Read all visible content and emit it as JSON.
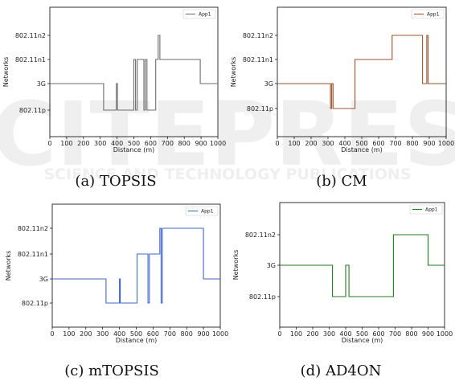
{
  "chart_data": [
    {
      "type": "line",
      "caption": "(a) TOPSIS",
      "xlabel": "Distance (m)",
      "ylabel": "Networks",
      "xlim": [
        0,
        1000
      ],
      "x_ticks": [
        "0",
        "100",
        "200",
        "300",
        "400",
        "500",
        "600",
        "700",
        "800",
        "900",
        "1000"
      ],
      "y_categories": [
        "802.11p",
        "3G",
        "802.11n1",
        "802.11n2"
      ],
      "legend_position": "top-right",
      "series": [
        {
          "name": "App1",
          "color": "#6e6e6e",
          "x": [
            0,
            320,
            320,
            395,
            395,
            403,
            403,
            500,
            500,
            510,
            510,
            520,
            520,
            560,
            560,
            568,
            568,
            578,
            578,
            630,
            630,
            645,
            645,
            655,
            655,
            895,
            895,
            1000
          ],
          "y": [
            1,
            1,
            0,
            0,
            1,
            1,
            0,
            0,
            2,
            2,
            0,
            0,
            2,
            2,
            0,
            0,
            2,
            2,
            0,
            0,
            2,
            2,
            3,
            3,
            2,
            2,
            1,
            1
          ]
        }
      ]
    },
    {
      "type": "line",
      "caption": "(b) CM",
      "xlabel": "Distance (m)",
      "ylabel": "Networks",
      "xlim": [
        0,
        1000
      ],
      "x_ticks": [
        "0",
        "100",
        "200",
        "300",
        "400",
        "500",
        "600",
        "700",
        "800",
        "900",
        "1000"
      ],
      "y_categories": [
        "802.11p",
        "3G",
        "802.11n1",
        "802.11n2"
      ],
      "legend_position": "top-right",
      "series": [
        {
          "name": "App1",
          "color": "#a0522d",
          "x": [
            0,
            315,
            315,
            322,
            322,
            330,
            330,
            460,
            460,
            680,
            680,
            860,
            860,
            885,
            885,
            893,
            893,
            900,
            900,
            1000
          ],
          "y": [
            1,
            1,
            0,
            0,
            1,
            1,
            0,
            0,
            2,
            2,
            3,
            3,
            1,
            1,
            3,
            3,
            1,
            1,
            1,
            1
          ]
        }
      ]
    },
    {
      "type": "line",
      "caption": "(c) mTOPSIS",
      "xlabel": "Distance (m)",
      "ylabel": "Networks",
      "xlim": [
        0,
        1000
      ],
      "x_ticks": [
        "0",
        "100",
        "200",
        "300",
        "400",
        "500",
        "600",
        "700",
        "800",
        "900",
        "1000"
      ],
      "y_categories": [
        "802.11p",
        "3G",
        "802.11n1",
        "802.11n2"
      ],
      "legend_position": "top-right",
      "series": [
        {
          "name": "App1",
          "color": "#4169c8",
          "x": [
            0,
            320,
            320,
            400,
            400,
            405,
            405,
            505,
            505,
            570,
            570,
            578,
            578,
            640,
            640,
            648,
            648,
            655,
            655,
            900,
            900,
            1000
          ],
          "y": [
            1,
            1,
            0,
            0,
            1,
            1,
            0,
            0,
            2,
            2,
            0,
            0,
            2,
            2,
            3,
            3,
            0,
            0,
            3,
            3,
            1,
            1
          ]
        }
      ]
    },
    {
      "type": "line",
      "caption": "(d) AD4ON",
      "xlabel": "Distance (m)",
      "ylabel": "Networks",
      "xlim": [
        0,
        1000
      ],
      "x_ticks": [
        "0",
        "100",
        "200",
        "300",
        "400",
        "500",
        "600",
        "700",
        "800",
        "900",
        "1000"
      ],
      "y_categories": [
        "802.11p",
        "3G",
        "802.11n2"
      ],
      "legend_position": "top-right",
      "series": [
        {
          "name": "App1",
          "color": "#1e7a1e",
          "x": [
            0,
            320,
            320,
            400,
            400,
            420,
            420,
            690,
            690,
            900,
            900,
            1000
          ],
          "y": [
            1,
            1,
            0,
            0,
            1,
            1,
            0,
            0,
            2,
            2,
            1,
            1
          ]
        }
      ]
    }
  ],
  "watermark": {
    "big_text": "SCITEPRESS",
    "sub_text": "SCIENCE AND TECHNOLOGY PUBLICATIONS",
    "color": "#e6e6e6"
  }
}
